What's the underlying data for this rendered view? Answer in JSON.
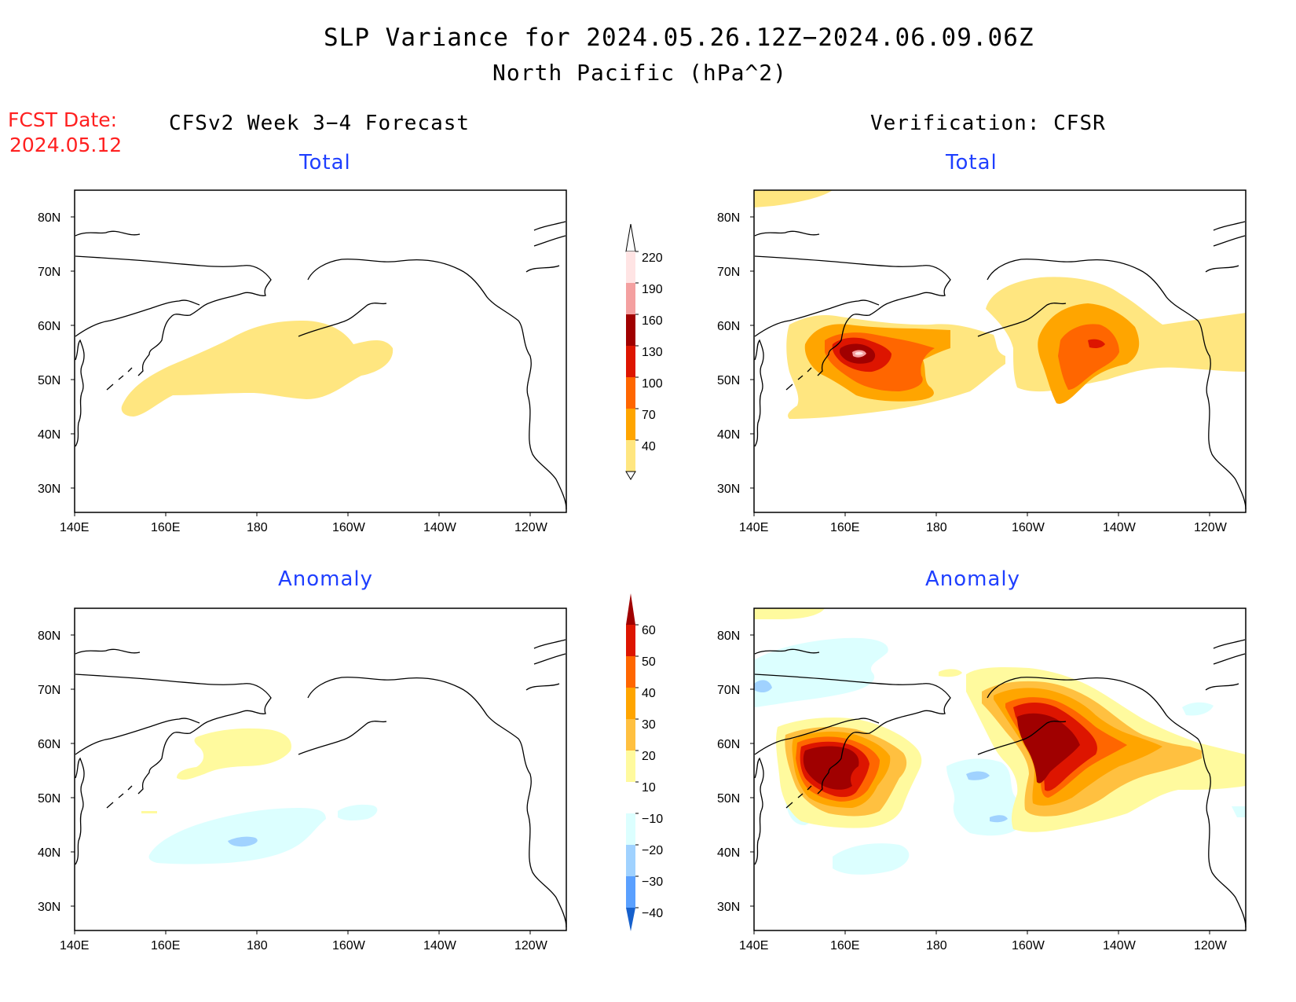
{
  "title": "SLP Variance for 2024.05.26.12Z−2024.06.09.06Z",
  "subtitle": "North Pacific (hPa^2)",
  "fcst_label": "FCST Date:",
  "fcst_date": "2024.05.12",
  "columns": {
    "forecast": "CFSv2 Week 3−4 Forecast",
    "verification": "Verification: CFSR"
  },
  "panels": {
    "total": "Total",
    "anomaly": "Anomaly"
  },
  "axes": {
    "lat_ticks": [
      "80N",
      "70N",
      "60N",
      "50N",
      "40N",
      "30N"
    ],
    "lon_ticks": [
      "140E",
      "160E",
      "180",
      "160W",
      "140W",
      "120W"
    ],
    "lat_range": [
      25,
      85
    ],
    "lon_range_east": [
      140,
      250
    ]
  },
  "colorbars": {
    "total": {
      "labels": [
        "220",
        "190",
        "160",
        "130",
        "100",
        "70",
        "40"
      ],
      "colors": [
        "#ffe4e4",
        "#f4a0a0",
        "#a00000",
        "#dd1500",
        "#ff6600",
        "#ffa500",
        "#ffe680"
      ]
    },
    "anomaly": {
      "labels": [
        "60",
        "50",
        "40",
        "30",
        "20",
        "10",
        "−10",
        "−20",
        "−30",
        "−40"
      ],
      "colors": [
        "#a00000",
        "#dd1500",
        "#ff6600",
        "#ffa500",
        "#ffc040",
        "#fffa9e",
        "#ffffff",
        "#dcffff",
        "#a0d2ff",
        "#5aa0ff",
        "#2a78e6",
        "#1660cc"
      ]
    }
  }
}
